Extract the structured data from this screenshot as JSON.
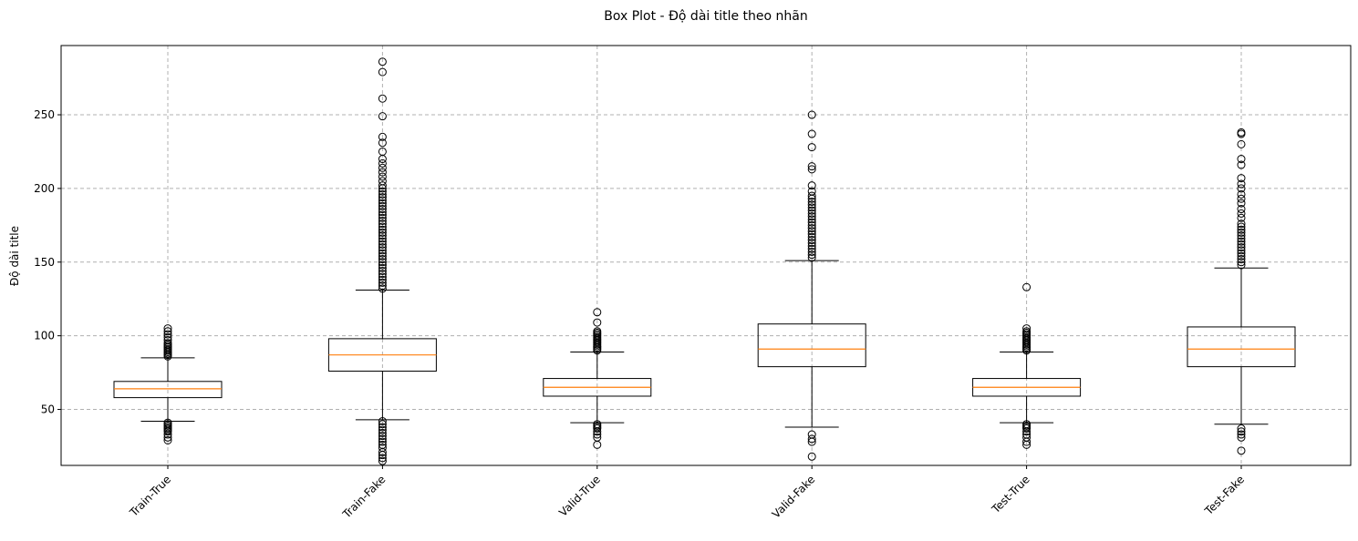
{
  "chart_data": {
    "type": "box",
    "title": "Box Plot - Độ dài title theo nhãn",
    "xlabel": "",
    "ylabel": "Độ dài title",
    "ylim": [
      12,
      297
    ],
    "yticks": [
      50,
      100,
      150,
      200,
      250
    ],
    "grid": true,
    "colors": {
      "box": "#000000",
      "median": "#ff7f0e",
      "grid": "#b0b0b0"
    },
    "categories": [
      "Train-True",
      "Train-Fake",
      "Valid-True",
      "Valid-Fake",
      "Test-True",
      "Test-Fake"
    ],
    "boxes": [
      {
        "label": "Train-True",
        "whisker_low": 42,
        "q1": 58,
        "median": 64,
        "q3": 69,
        "whisker_high": 85,
        "outliers": [
          29,
          31,
          33,
          35,
          36,
          37,
          38,
          39,
          40,
          41,
          86,
          87,
          88,
          89,
          90,
          91,
          92,
          93,
          94,
          95,
          97,
          99,
          101,
          103,
          105
        ]
      },
      {
        "label": "Train-Fake",
        "whisker_low": 43,
        "q1": 76,
        "median": 87,
        "q3": 98,
        "whisker_high": 131,
        "outliers": [
          15,
          17,
          19,
          21,
          24,
          26,
          28,
          30,
          32,
          34,
          36,
          38,
          40,
          42,
          132,
          134,
          136,
          138,
          140,
          142,
          144,
          146,
          148,
          150,
          152,
          154,
          156,
          158,
          160,
          162,
          164,
          166,
          168,
          170,
          172,
          174,
          176,
          178,
          180,
          182,
          184,
          186,
          188,
          190,
          192,
          194,
          196,
          198,
          200,
          202,
          205,
          208,
          211,
          214,
          217,
          220,
          225,
          231,
          235,
          249,
          261,
          279,
          286
        ]
      },
      {
        "label": "Valid-True",
        "whisker_low": 41,
        "q1": 59,
        "median": 65,
        "q3": 71,
        "whisker_high": 89,
        "outliers": [
          26,
          31,
          33,
          35,
          37,
          38,
          39,
          40,
          90,
          91,
          92,
          93,
          94,
          95,
          96,
          97,
          98,
          99,
          100,
          101,
          102,
          103,
          109,
          116
        ]
      },
      {
        "label": "Valid-Fake",
        "whisker_low": 38,
        "q1": 79,
        "median": 91,
        "q3": 108,
        "whisker_high": 151,
        "outliers": [
          18,
          28,
          30,
          33,
          153,
          155,
          157,
          159,
          161,
          163,
          165,
          167,
          169,
          171,
          173,
          175,
          177,
          179,
          181,
          183,
          185,
          187,
          189,
          191,
          193,
          195,
          198,
          202,
          213,
          215,
          228,
          237,
          250
        ]
      },
      {
        "label": "Test-True",
        "whisker_low": 41,
        "q1": 59,
        "median": 65,
        "q3": 71,
        "whisker_high": 89,
        "outliers": [
          26,
          28,
          31,
          33,
          35,
          37,
          38,
          39,
          40,
          90,
          91,
          92,
          93,
          94,
          95,
          96,
          97,
          98,
          99,
          100,
          101,
          102,
          103,
          105,
          133
        ]
      },
      {
        "label": "Test-Fake",
        "whisker_low": 40,
        "q1": 79,
        "median": 91,
        "q3": 106,
        "whisker_high": 146,
        "outliers": [
          22,
          31,
          33,
          35,
          37,
          148,
          150,
          152,
          154,
          156,
          158,
          160,
          162,
          164,
          166,
          168,
          170,
          172,
          174,
          176,
          180,
          183,
          186,
          190,
          193,
          196,
          200,
          203,
          207,
          216,
          220,
          230,
          237,
          238
        ]
      }
    ]
  }
}
